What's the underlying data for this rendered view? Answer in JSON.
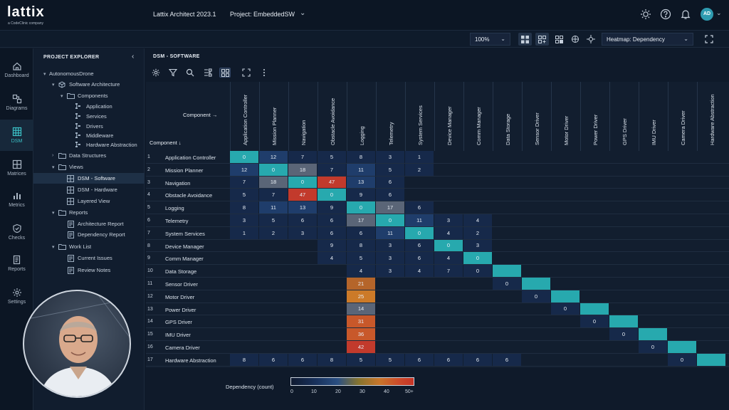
{
  "app": {
    "logo": "lattix",
    "logo_sub": "a CodeClinic company",
    "title": "Lattix Architect 2023.1",
    "project": "Project: EmbeddedSW",
    "user_initials": "AD"
  },
  "toolbar": {
    "zoom": "100%",
    "heatmap": "Heatmap: Dependency"
  },
  "nav": [
    {
      "label": "Dashboard",
      "icon": "home-icon"
    },
    {
      "label": "Diagrams",
      "icon": "diagram-icon"
    },
    {
      "label": "DSM",
      "icon": "dsm-icon"
    },
    {
      "label": "Matrices",
      "icon": "matrix-icon"
    },
    {
      "label": "Metrics",
      "icon": "bar-chart-icon"
    },
    {
      "label": "Checks",
      "icon": "shield-check-icon"
    },
    {
      "label": "Reports",
      "icon": "report-icon"
    },
    {
      "label": "Settings",
      "icon": "gear-icon"
    }
  ],
  "explorer": {
    "title": "PROJECT EXPLORER",
    "tree": [
      {
        "label": "AutonomousDrone",
        "level": 0,
        "chev": "▾",
        "icon": "none"
      },
      {
        "label": "Software Architecture",
        "level": 1,
        "chev": "▾",
        "icon": "cube"
      },
      {
        "label": "Components",
        "level": 2,
        "chev": "▾",
        "icon": "folder"
      },
      {
        "label": "Application",
        "level": 3,
        "chev": "",
        "icon": "comp"
      },
      {
        "label": "Services",
        "level": 3,
        "chev": "",
        "icon": "comp"
      },
      {
        "label": "Drivers",
        "level": 3,
        "chev": "",
        "icon": "comp"
      },
      {
        "label": "Middleware",
        "level": 3,
        "chev": "",
        "icon": "comp"
      },
      {
        "label": "Hardware Abstraction",
        "level": 3,
        "chev": "",
        "icon": "comp"
      },
      {
        "label": "Data Structures",
        "level": 1,
        "chev": "›",
        "icon": "folder"
      },
      {
        "label": "Views",
        "level": 1,
        "chev": "▾",
        "icon": "folder"
      },
      {
        "label": "DSM - Software",
        "level": 2,
        "chev": "",
        "icon": "grid"
      },
      {
        "label": "DSM - Hardware",
        "level": 2,
        "chev": "",
        "icon": "grid"
      },
      {
        "label": "Layered View",
        "level": 2,
        "chev": "",
        "icon": "grid"
      },
      {
        "label": "Reports",
        "level": 1,
        "chev": "▾",
        "icon": "folder"
      },
      {
        "label": "Architecture Report",
        "level": 2,
        "chev": "",
        "icon": "doc"
      },
      {
        "label": "Dependency Report",
        "level": 2,
        "chev": "",
        "icon": "doc"
      },
      {
        "label": "Work List",
        "level": 1,
        "chev": "▾",
        "icon": "folder"
      },
      {
        "label": "Current Issues",
        "level": 2,
        "chev": "",
        "icon": "doc"
      },
      {
        "label": "Review Notes",
        "level": 2,
        "chev": "",
        "icon": "doc"
      }
    ]
  },
  "dsm": {
    "title": "DSM - SOFTWARE",
    "component_h": "Component →",
    "component_v": "Component ↓",
    "components": [
      "Application Controller",
      "Mission Planner",
      "Navigation",
      "Obstacle Avoidance",
      "Logging",
      "Telemetry",
      "System Services",
      "Device Manager",
      "Comm Manager",
      "Data Storage",
      "Sensor Driver",
      "Motor Driver",
      "Power Driver",
      "GPS Driver",
      "IMU Driver",
      "Camera Driver",
      "Hardware Abstraction"
    ],
    "matrix": [
      [
        0,
        12,
        7,
        5,
        8,
        3,
        1,
        null,
        null,
        null,
        null,
        null,
        null,
        null,
        null,
        null,
        null
      ],
      [
        12,
        0,
        18,
        7,
        11,
        5,
        2,
        null,
        null,
        null,
        null,
        null,
        null,
        null,
        null,
        null,
        null
      ],
      [
        7,
        18,
        0,
        47,
        13,
        6,
        null,
        null,
        null,
        null,
        null,
        null,
        null,
        null,
        null,
        null,
        null
      ],
      [
        5,
        7,
        47,
        0,
        9,
        6,
        null,
        null,
        null,
        null,
        null,
        null,
        null,
        null,
        null,
        null,
        null
      ],
      [
        8,
        11,
        13,
        9,
        0,
        17,
        6,
        null,
        null,
        null,
        null,
        null,
        null,
        null,
        null,
        null,
        null
      ],
      [
        3,
        5,
        6,
        6,
        17,
        0,
        11,
        3,
        4,
        null,
        null,
        null,
        null,
        null,
        null,
        null,
        null
      ],
      [
        1,
        2,
        3,
        6,
        6,
        11,
        0,
        4,
        2,
        null,
        null,
        null,
        null,
        null,
        null,
        null,
        null
      ],
      [
        null,
        null,
        null,
        9,
        8,
        3,
        6,
        0,
        3,
        null,
        null,
        null,
        null,
        null,
        null,
        null,
        null
      ],
      [
        null,
        null,
        null,
        4,
        5,
        3,
        6,
        4,
        0,
        null,
        null,
        null,
        null,
        null,
        null,
        null,
        null
      ],
      [
        null,
        null,
        null,
        null,
        4,
        3,
        4,
        7,
        0,
        null,
        null,
        null,
        null,
        null,
        null,
        null,
        null
      ],
      [
        null,
        null,
        null,
        null,
        21,
        null,
        null,
        null,
        null,
        0,
        null,
        null,
        null,
        null,
        null,
        null,
        null
      ],
      [
        null,
        null,
        null,
        null,
        25,
        null,
        null,
        null,
        null,
        null,
        0,
        null,
        null,
        null,
        null,
        null,
        null
      ],
      [
        null,
        null,
        null,
        null,
        14,
        null,
        null,
        null,
        null,
        null,
        null,
        0,
        null,
        null,
        null,
        null,
        null
      ],
      [
        null,
        null,
        null,
        null,
        31,
        null,
        null,
        null,
        null,
        null,
        null,
        null,
        0,
        null,
        null,
        null,
        null
      ],
      [
        null,
        null,
        null,
        null,
        36,
        null,
        null,
        null,
        null,
        null,
        null,
        null,
        null,
        0,
        null,
        null,
        null
      ],
      [
        null,
        null,
        null,
        null,
        42,
        null,
        null,
        null,
        null,
        null,
        null,
        null,
        null,
        null,
        0,
        null,
        null
      ],
      [
        8,
        6,
        6,
        8,
        5,
        5,
        6,
        6,
        6,
        6,
        null,
        null,
        null,
        null,
        null,
        0,
        null
      ]
    ],
    "diag_col": [
      0,
      1,
      2,
      3,
      4,
      5,
      6,
      7,
      8,
      9,
      10,
      11,
      12,
      13,
      14,
      15,
      16
    ],
    "colors": {
      "diag": "#27a9ae",
      "empty": "#121e2f",
      "low": "#16294a",
      "mid": "#1f3d6b",
      "orange": "#b5652a",
      "orange2": "#cc7a28",
      "red": "#c23a2c",
      "gray": "#5a6577"
    }
  },
  "legend": {
    "label": "Dependency (count)",
    "ticks": [
      "0",
      "10",
      "20",
      "30",
      "40",
      "50+"
    ]
  }
}
